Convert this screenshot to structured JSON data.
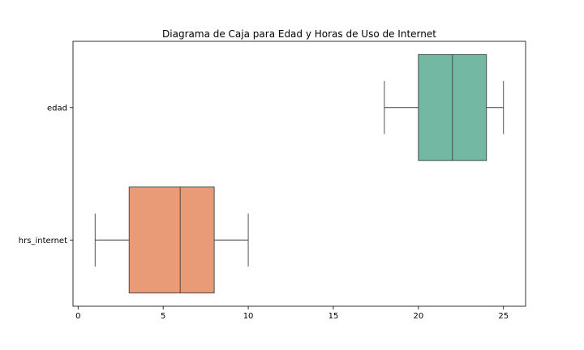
{
  "chart_data": {
    "type": "boxplot",
    "orientation": "horizontal",
    "title": "Diagrama de Caja para Edad y Horas de Uso de Internet",
    "xlabel": "",
    "ylabel": "",
    "xlim": [
      -0.3,
      26.3
    ],
    "xticks": [
      0,
      5,
      10,
      15,
      20,
      25
    ],
    "grid": false,
    "categories": [
      "edad",
      "hrs_internet"
    ],
    "boxes": [
      {
        "category": "edad",
        "min": 18,
        "q1": 20,
        "median": 22,
        "q3": 24,
        "max": 25,
        "color": "#73b8a2"
      },
      {
        "category": "hrs_internet",
        "min": 1,
        "q1": 3,
        "median": 6,
        "q3": 8,
        "max": 10,
        "color": "#e99a77"
      }
    ]
  }
}
